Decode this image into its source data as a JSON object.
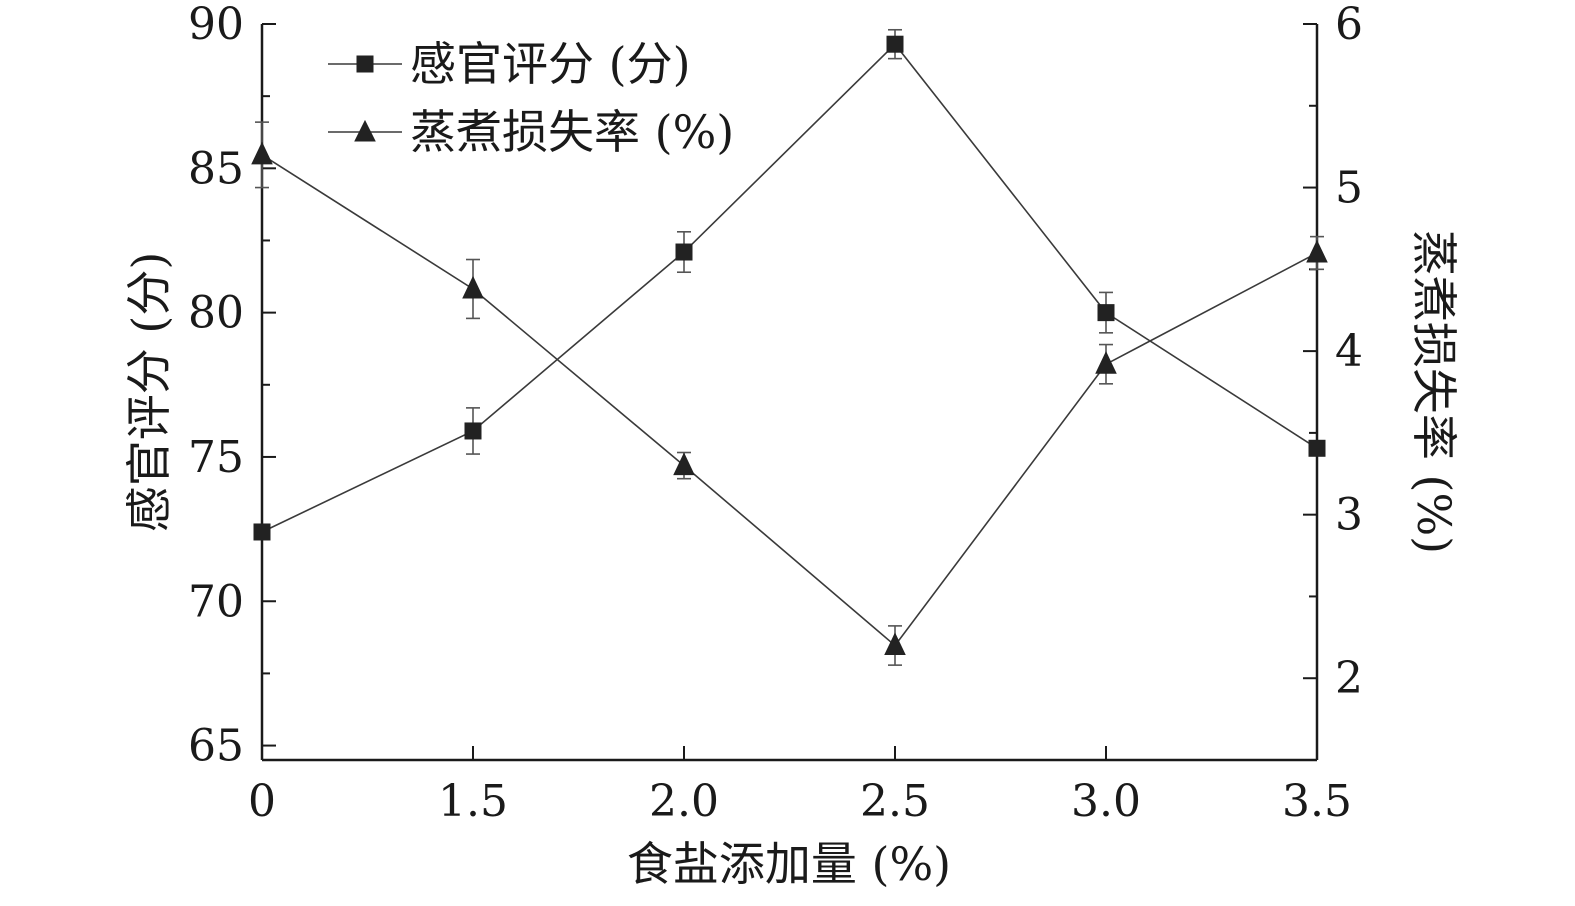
{
  "chart_data": {
    "type": "line",
    "xlabel": "食盐添加量 (%)",
    "ylabel_left": "感官评分 (分)",
    "ylabel_right": "蒸煮损失率 (%)",
    "x_tick_labels": [
      "0",
      "1.5",
      "2.0",
      "2.5",
      "3.0",
      "3.5"
    ],
    "left_ylim": [
      64.5,
      90
    ],
    "left_yticks": [
      65,
      70,
      75,
      80,
      85,
      90
    ],
    "right_ylim": [
      1.5,
      6
    ],
    "right_yticks": [
      2,
      3,
      4,
      5,
      6
    ],
    "legend_placement": "top-left",
    "series": [
      {
        "name": "感官评分 (分)",
        "axis": "left",
        "marker": "square",
        "values": [
          72.4,
          75.9,
          82.1,
          89.3,
          80.0,
          75.3
        ],
        "errors": [
          0.0,
          0.8,
          0.7,
          0.5,
          0.7,
          0.0
        ]
      },
      {
        "name": "蒸煮损失率 (%)",
        "axis": "right",
        "marker": "triangle",
        "values": [
          5.2,
          4.38,
          3.3,
          2.2,
          3.92,
          4.6
        ],
        "errors": [
          0.2,
          0.18,
          0.08,
          0.12,
          0.12,
          0.1
        ]
      }
    ]
  }
}
